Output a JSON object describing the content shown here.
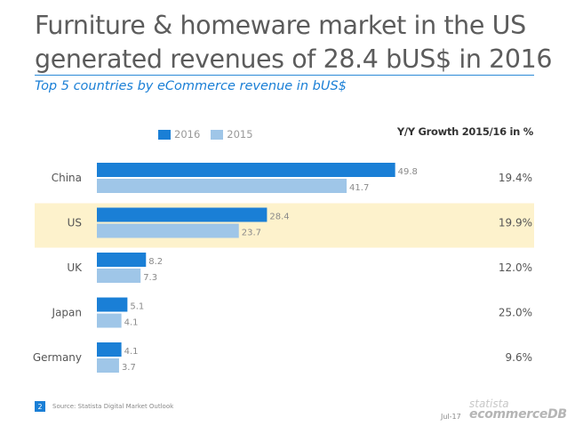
{
  "title_line1": "Furniture & homeware market in the US",
  "title_line2": "generated revenues of 28.4 bUS$ in 2016",
  "subtitle": "Top 5 countries by eCommerce revenue in bUS$",
  "growth_header": "Y/Y Growth 2015/16 in %",
  "footer": {
    "page_number": "2",
    "source": "Source: Statista Digital Market Outlook",
    "date": "Jul-17",
    "logo_top": "statista",
    "logo_bottom": "ecommerceDB"
  },
  "colors": {
    "series_2016": "#1a7fd6",
    "series_2015": "#9fc6e8",
    "highlight": "#fdf2cc",
    "label": "#555555",
    "value_label": "#8a8a8a"
  },
  "chart_data": {
    "type": "bar",
    "orientation": "horizontal",
    "categories": [
      "China",
      "US",
      "UK",
      "Japan",
      "Germany"
    ],
    "series": [
      {
        "name": "2016",
        "values": [
          49.8,
          28.4,
          8.2,
          5.1,
          4.1
        ]
      },
      {
        "name": "2015",
        "values": [
          41.7,
          23.7,
          7.3,
          4.1,
          3.7
        ]
      }
    ],
    "growth": [
      "19.4%",
      "19.9%",
      "12.0%",
      "25.0%",
      "9.6%"
    ],
    "highlight_category": "US",
    "xlim": [
      0,
      50
    ],
    "legend_placement": "top",
    "grid": false
  }
}
